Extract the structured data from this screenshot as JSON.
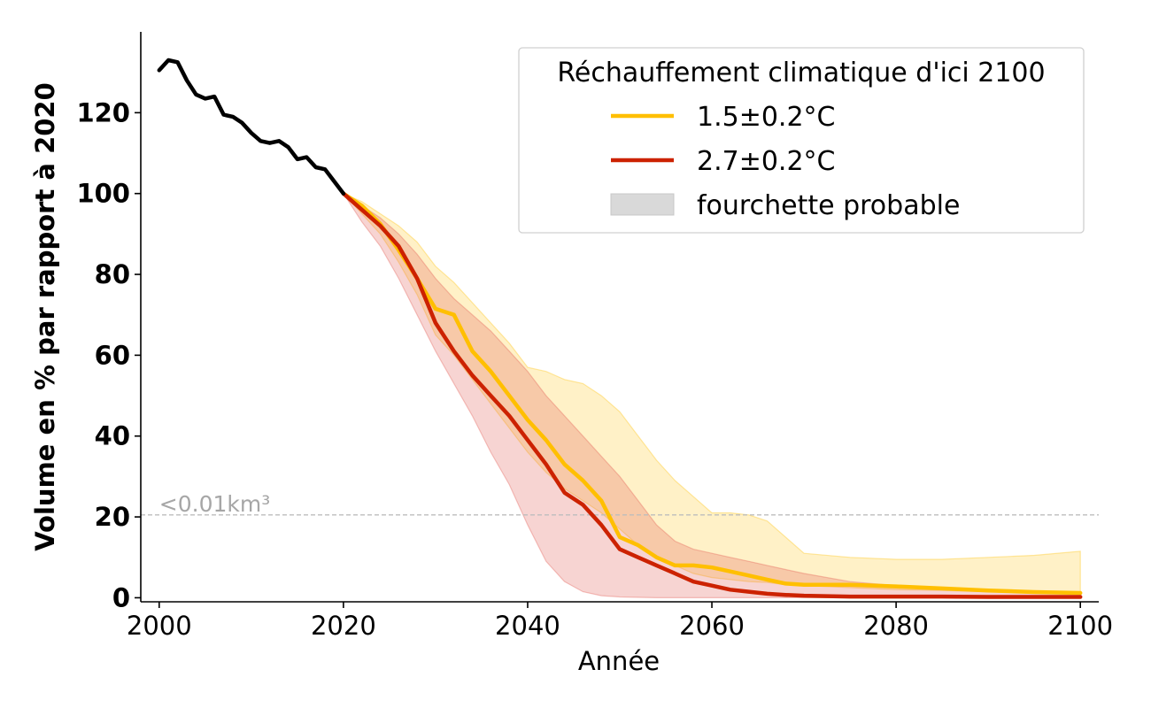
{
  "chart_data": {
    "type": "line",
    "title": "",
    "xlabel": "Année",
    "ylabel": "Volume en % par rapport à 2020",
    "xlim": [
      1998,
      2102
    ],
    "ylim": [
      -1,
      140
    ],
    "xticks": [
      2000,
      2020,
      2040,
      2060,
      2080,
      2100
    ],
    "yticks": [
      0,
      20,
      40,
      60,
      80,
      100,
      120
    ],
    "grid": false,
    "threshold": {
      "y": 20.5,
      "label": "<0.01km³",
      "color": "#bdbdbd"
    },
    "legend": {
      "title": "Réchauffement climatique d'ici 2100",
      "placement": "top-right",
      "entries": [
        {
          "label": "1.5±0.2°C",
          "kind": "line",
          "color": "#FFBF00"
        },
        {
          "label": "2.7±0.2°C",
          "kind": "line",
          "color": "#CC2200"
        },
        {
          "label": "fourchette probable",
          "kind": "patch",
          "color": "#d9d9d9"
        }
      ]
    },
    "historical": {
      "color": "#000000",
      "x": [
        2000,
        2001,
        2002,
        2003,
        2004,
        2005,
        2006,
        2007,
        2008,
        2009,
        2010,
        2011,
        2012,
        2013,
        2014,
        2015,
        2016,
        2017,
        2018,
        2019,
        2020
      ],
      "y": [
        130.5,
        133,
        132.5,
        128,
        124.5,
        123.5,
        124,
        119.5,
        119,
        117.5,
        115,
        113,
        112.5,
        113,
        111.5,
        108.5,
        109,
        106.5,
        106,
        103,
        100
      ]
    },
    "series": [
      {
        "name": "1.5±0.2°C",
        "color": "#FFBF00",
        "band_color": "#FFBF00",
        "band_opacity": 0.22,
        "x": [
          2020,
          2022,
          2024,
          2026,
          2028,
          2030,
          2032,
          2034,
          2036,
          2038,
          2040,
          2042,
          2044,
          2046,
          2048,
          2050,
          2052,
          2054,
          2056,
          2058,
          2060,
          2062,
          2064,
          2066,
          2068,
          2070,
          2075,
          2080,
          2085,
          2090,
          2095,
          2100
        ],
        "y": [
          100,
          97,
          92.5,
          86,
          79,
          71.5,
          70,
          61,
          56,
          50,
          44,
          39,
          33,
          29,
          24,
          15,
          13,
          10,
          8,
          8,
          7.5,
          6.5,
          5.5,
          4.5,
          3.5,
          3.2,
          3.2,
          2.8,
          2.3,
          1.8,
          1.4,
          1.2
        ],
        "lower": [
          100,
          95,
          90,
          83,
          75,
          65,
          60,
          54,
          48,
          42,
          36,
          31,
          27,
          24,
          21,
          17,
          13,
          10,
          8,
          6,
          5,
          4.5,
          4,
          3.8,
          3.2,
          3,
          2.5,
          2,
          1.8,
          1.5,
          1.2,
          1
        ],
        "upper": [
          100,
          98,
          95,
          92,
          88,
          82,
          78,
          73,
          68,
          63,
          57,
          56,
          54,
          53,
          50,
          46,
          40,
          34,
          29,
          25,
          21,
          21,
          20.5,
          19,
          15,
          11,
          10,
          9.5,
          9.5,
          10,
          10.5,
          11.5
        ]
      },
      {
        "name": "2.7±0.2°C",
        "color": "#CC2200",
        "band_color": "#E15A50",
        "band_opacity": 0.26,
        "x": [
          2020,
          2022,
          2024,
          2026,
          2028,
          2030,
          2032,
          2034,
          2036,
          2038,
          2040,
          2042,
          2044,
          2046,
          2048,
          2050,
          2052,
          2054,
          2056,
          2058,
          2060,
          2062,
          2064,
          2066,
          2068,
          2070,
          2075,
          2080,
          2085,
          2090,
          2095,
          2100
        ],
        "y": [
          100,
          96,
          92,
          87,
          79,
          68,
          61,
          55,
          50,
          45,
          39,
          33,
          26,
          23,
          18,
          12,
          10,
          8,
          6,
          4,
          3,
          2,
          1.5,
          1,
          0.7,
          0.5,
          0.3,
          0.3,
          0.3,
          0.2,
          0.2,
          0.2
        ],
        "lower": [
          100,
          93,
          87,
          79,
          70,
          61,
          53,
          45,
          36,
          28,
          18,
          9,
          4,
          1.5,
          0.5,
          0.2,
          0.1,
          0,
          0,
          0,
          0,
          0,
          0,
          0,
          0,
          0,
          0,
          0,
          0,
          0,
          0,
          0
        ],
        "upper": [
          100,
          97,
          94,
          90,
          85,
          79,
          74,
          70,
          66,
          61,
          56,
          50,
          45,
          40,
          35,
          30,
          24,
          18,
          14,
          12,
          11,
          10,
          9,
          8,
          7,
          6,
          4,
          3,
          2,
          1.5,
          1.2,
          1
        ]
      }
    ]
  }
}
